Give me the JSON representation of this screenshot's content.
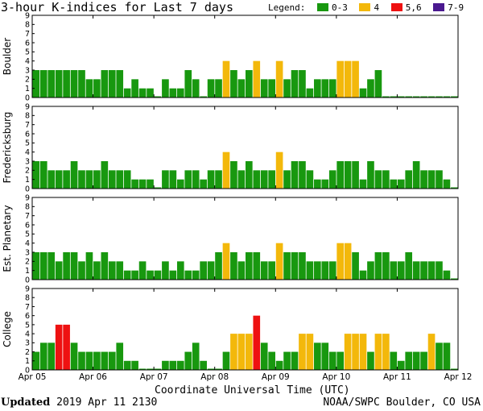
{
  "header": {
    "title": "3-hour K-indices for Last 7 days",
    "legend_label": "Legend:",
    "legend": [
      {
        "label": "0-3",
        "color": "#18980f"
      },
      {
        "label": "4",
        "color": "#f3b80b"
      },
      {
        "label": "5,6",
        "color": "#ee1111"
      },
      {
        "label": "7-9",
        "color": "#4a198f"
      }
    ]
  },
  "footer": {
    "x_title": "Coordinate Universal Time (UTC)",
    "updated_label": "Updated",
    "updated_value": "2019 Apr 11 2130",
    "source": "NOAA/SWPC Boulder, CO USA"
  },
  "chart_data": [
    {
      "type": "bar",
      "title": "Boulder",
      "ylabel": "Boulder",
      "ylim": [
        0,
        9
      ],
      "yticks": [
        "0",
        "1",
        "2",
        "3",
        "4",
        "5",
        "6",
        "7",
        "8",
        "9"
      ],
      "xticks": [
        "Apr 05",
        "Apr 06",
        "Apr 07",
        "Apr 08",
        "Apr 09",
        "Apr 10",
        "Apr 11",
        "Apr 12"
      ],
      "values": [
        3,
        3,
        3,
        3,
        3,
        3,
        3,
        2,
        2,
        3,
        3,
        3,
        1,
        2,
        1,
        1,
        0,
        2,
        1,
        1,
        3,
        2,
        0,
        2,
        2,
        4,
        3,
        2,
        3,
        4,
        2,
        2,
        4,
        2,
        3,
        3,
        1,
        2,
        2,
        2,
        4,
        4,
        4,
        1,
        2,
        3,
        0,
        0,
        0,
        0,
        0,
        0,
        0,
        0,
        0,
        0
      ]
    },
    {
      "type": "bar",
      "title": "Fredericksburg",
      "ylabel": "Fredericksburg",
      "ylim": [
        0,
        9
      ],
      "yticks": [
        "0",
        "1",
        "2",
        "3",
        "4",
        "5",
        "6",
        "7",
        "8",
        "9"
      ],
      "xticks": [
        "Apr 05",
        "Apr 06",
        "Apr 07",
        "Apr 08",
        "Apr 09",
        "Apr 10",
        "Apr 11",
        "Apr 12"
      ],
      "values": [
        3,
        3,
        2,
        2,
        2,
        3,
        2,
        2,
        2,
        3,
        2,
        2,
        2,
        1,
        1,
        1,
        0,
        2,
        2,
        1,
        2,
        2,
        1,
        2,
        2,
        4,
        3,
        2,
        3,
        2,
        2,
        2,
        4,
        2,
        3,
        3,
        2,
        1,
        1,
        2,
        3,
        3,
        3,
        1,
        3,
        2,
        2,
        1,
        1,
        2,
        3,
        2,
        2,
        2,
        1,
        0
      ]
    },
    {
      "type": "bar",
      "title": "Est. Planetary",
      "ylabel": "Est. Planetary",
      "ylim": [
        0,
        9
      ],
      "yticks": [
        "0",
        "1",
        "2",
        "3",
        "4",
        "5",
        "6",
        "7",
        "8",
        "9"
      ],
      "xticks": [
        "Apr 05",
        "Apr 06",
        "Apr 07",
        "Apr 08",
        "Apr 09",
        "Apr 10",
        "Apr 11",
        "Apr 12"
      ],
      "values": [
        3,
        3,
        3,
        2,
        3,
        3,
        2,
        3,
        2,
        3,
        2,
        2,
        1,
        1,
        2,
        1,
        1,
        2,
        1,
        2,
        1,
        1,
        2,
        2,
        3,
        4,
        3,
        2,
        3,
        3,
        2,
        2,
        4,
        3,
        3,
        3,
        2,
        2,
        2,
        2,
        4,
        4,
        3,
        1,
        2,
        3,
        3,
        2,
        2,
        3,
        2,
        2,
        2,
        2,
        1,
        0
      ]
    },
    {
      "type": "bar",
      "title": "College",
      "ylabel": "College",
      "ylim": [
        0,
        9
      ],
      "yticks": [
        "0",
        "1",
        "2",
        "3",
        "4",
        "5",
        "6",
        "7",
        "8",
        "9"
      ],
      "xticks": [
        "Apr 05",
        "Apr 06",
        "Apr 07",
        "Apr 08",
        "Apr 09",
        "Apr 10",
        "Apr 11",
        "Apr 12"
      ],
      "values": [
        2,
        3,
        3,
        5,
        5,
        3,
        2,
        2,
        2,
        2,
        2,
        3,
        1,
        1,
        0,
        0,
        0,
        1,
        1,
        1,
        2,
        3,
        1,
        0,
        0,
        2,
        4,
        4,
        4,
        6,
        3,
        2,
        1,
        2,
        2,
        4,
        4,
        3,
        3,
        2,
        2,
        4,
        4,
        4,
        2,
        4,
        4,
        2,
        1,
        2,
        2,
        2,
        4,
        3,
        3,
        0
      ]
    }
  ]
}
